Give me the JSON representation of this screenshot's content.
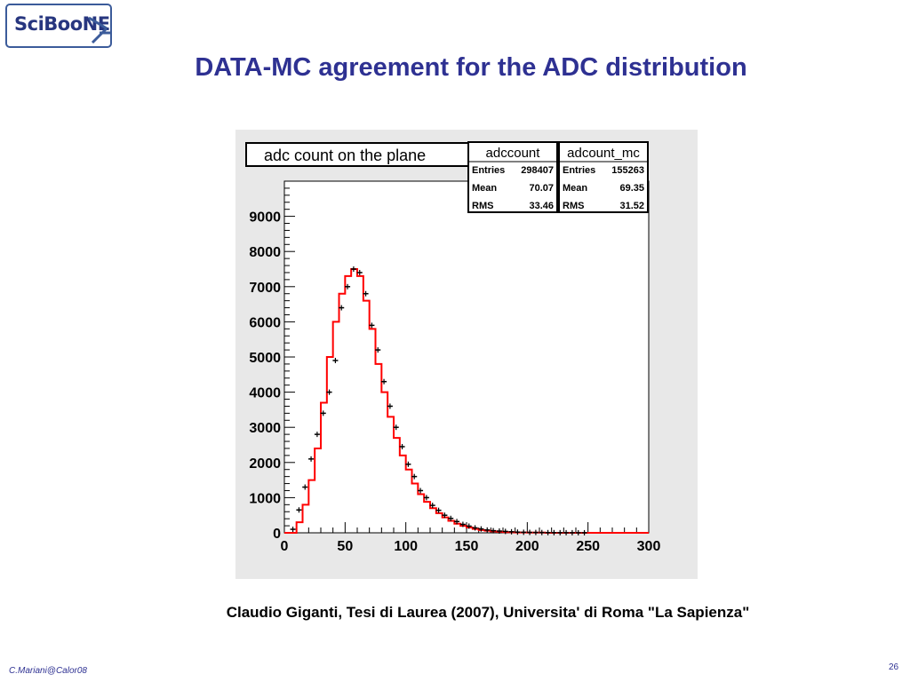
{
  "logo": {
    "text": "SciBooNE"
  },
  "title": "DATA-MC agreement for the ADC distribution",
  "caption": "Claudio Giganti, Tesi di Laurea (2007), Universita' di Roma \"La Sapienza\"",
  "footer": {
    "author": "C.Mariani@Calor08",
    "page": "26"
  },
  "colors": {
    "title": "#2e3192",
    "mc_histogram": "#ff0000",
    "data_points": "#000000",
    "frame_background": "#e8e8e8"
  },
  "chart_data": {
    "type": "histogram",
    "title": "adc count on the  plane",
    "xlim": [
      0,
      300
    ],
    "ylim": [
      0,
      10000
    ],
    "x_ticks": [
      "0",
      "50",
      "100",
      "150",
      "200",
      "250",
      "300"
    ],
    "y_ticks": [
      "0",
      "1000",
      "2000",
      "3000",
      "4000",
      "5000",
      "6000",
      "7000",
      "8000",
      "9000"
    ],
    "stats_boxes": [
      {
        "name": "adccount",
        "rows": [
          [
            "Entries",
            "298407"
          ],
          [
            "Mean",
            "70.07"
          ],
          [
            "RMS",
            "33.46"
          ]
        ]
      },
      {
        "name": "adcount_mc",
        "rows": [
          [
            "Entries",
            "155263"
          ],
          [
            "Mean",
            "69.35"
          ],
          [
            "RMS",
            "31.52"
          ]
        ]
      }
    ],
    "bin_width": 5,
    "mc_bin_centers": [
      2.5,
      7.5,
      12.5,
      17.5,
      22.5,
      27.5,
      32.5,
      37.5,
      42.5,
      47.5,
      52.5,
      57.5,
      62.5,
      67.5,
      72.5,
      77.5,
      82.5,
      87.5,
      92.5,
      97.5,
      102.5,
      107.5,
      112.5,
      117.5,
      122.5,
      127.5,
      132.5,
      137.5,
      142.5,
      147.5,
      152.5,
      157.5,
      162.5,
      167.5,
      172.5,
      177.5,
      182.5,
      187.5,
      192.5,
      197.5,
      202.5,
      207.5,
      212.5,
      217.5,
      222.5,
      227.5,
      232.5,
      237.5,
      242.5,
      247.5,
      252.5,
      257.5,
      262.5,
      267.5,
      272.5,
      277.5,
      282.5,
      287.5,
      292.5,
      297.5
    ],
    "mc_values": [
      0,
      0,
      300,
      800,
      1500,
      2400,
      3700,
      5000,
      6000,
      6800,
      7300,
      7500,
      7300,
      6600,
      5800,
      4800,
      4000,
      3300,
      2700,
      2200,
      1800,
      1400,
      1100,
      880,
      700,
      560,
      440,
      340,
      260,
      200,
      150,
      110,
      80,
      60,
      40,
      30,
      20,
      15,
      10,
      10,
      5,
      5,
      5,
      0,
      0,
      0,
      0,
      0,
      0,
      0,
      0,
      0,
      0,
      0,
      0,
      0,
      0,
      0,
      0,
      0
    ],
    "data_x": [
      7,
      12,
      17,
      22,
      27,
      32,
      37,
      42,
      47,
      52,
      57,
      62,
      67,
      72,
      77,
      82,
      87,
      92,
      97,
      102,
      107,
      112,
      117,
      122,
      127,
      132,
      137,
      142,
      147,
      152,
      157,
      162,
      167,
      172,
      177,
      182,
      187,
      192,
      197,
      202,
      207,
      212,
      217,
      222,
      227,
      232,
      237,
      242,
      247
    ],
    "data_y": [
      100,
      650,
      1300,
      2100,
      2800,
      3400,
      4000,
      4900,
      6400,
      7000,
      7500,
      7400,
      6800,
      5900,
      5200,
      4300,
      3600,
      3000,
      2450,
      1950,
      1600,
      1200,
      1000,
      780,
      640,
      500,
      410,
      320,
      240,
      190,
      140,
      110,
      80,
      60,
      50,
      40,
      30,
      20,
      15,
      12,
      10,
      8,
      6,
      5,
      4,
      3,
      3,
      2,
      2
    ]
  }
}
